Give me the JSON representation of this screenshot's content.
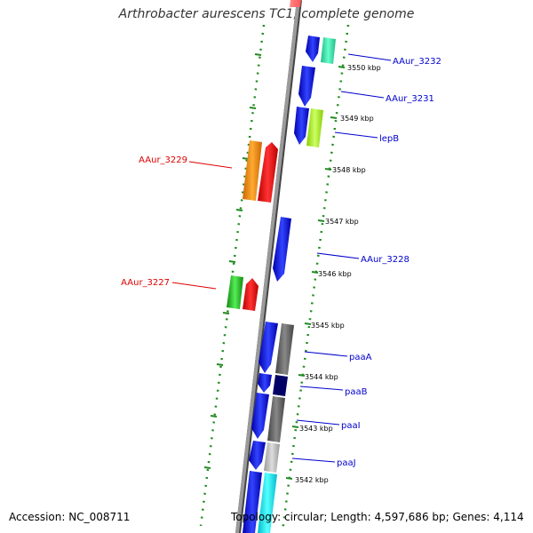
{
  "title": "Arthrobacter aurescens TC1, complete genome",
  "footer": {
    "accession": "Accession: NC_008711",
    "topology": "Topology: circular; Length: 4,597,686 bp; Genes: 4,114"
  },
  "kbp_labels": [
    "3550 kbp",
    "3549 kbp",
    "3548 kbp",
    "3547 kbp",
    "3546 kbp",
    "3545 kbp",
    "3544 kbp",
    "3543 kbp",
    "3542 kbp"
  ],
  "genes_right": [
    {
      "name": "AAur_3232",
      "color": "#0000cc"
    },
    {
      "name": "AAur_3231",
      "color": "#0000cc"
    },
    {
      "name": "lepB",
      "color": "#0000cc"
    },
    {
      "name": "AAur_3228",
      "color": "#0000cc"
    },
    {
      "name": "paaA",
      "color": "#0000cc"
    },
    {
      "name": "paaB",
      "color": "#0000cc"
    },
    {
      "name": "paaI",
      "color": "#0000cc"
    },
    {
      "name": "paaJ",
      "color": "#0000cc"
    }
  ],
  "genes_left": [
    {
      "name": "AAur_3229",
      "color": "#dd0000"
    },
    {
      "name": "AAur_3227",
      "color": "#dd0000"
    }
  ]
}
